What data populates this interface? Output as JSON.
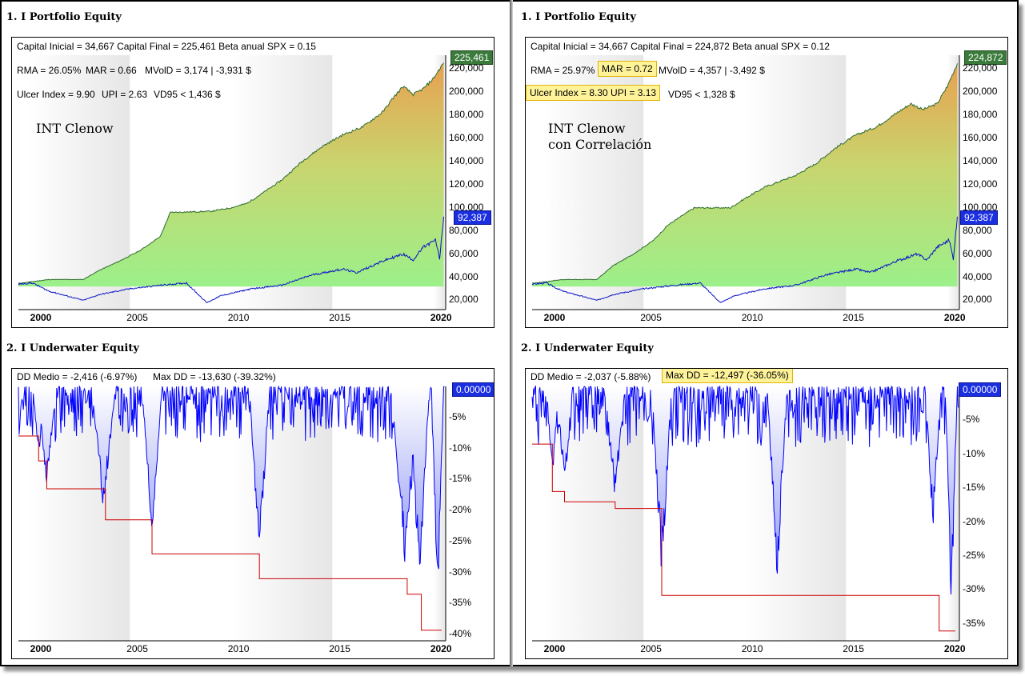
{
  "left": {
    "equity_title": "1. I Portfolio Equity",
    "underwater_title": "2. I Underwater Equity",
    "stats_line1": "Capital Inicial = 34,667  Capital Final = 225,461  Beta anual SPX = 0.15",
    "stats_rma": "RMA = 26.05%",
    "stats_mar": "MAR = 0.66",
    "stats_mvold": "MVolD = 3,174 | -3,931 $",
    "stats_ulcer": "Ulcer Index = 9.90",
    "stats_upi": "UPI = 2.63",
    "stats_vd95": "VD95 < 1,436 $",
    "strategy_label": "INT Clenow",
    "equity_flag": "225,461",
    "benchmark_flag": "92,387",
    "dd_medio": "DD Medio = -2,416 (-6.97%)",
    "max_dd": "Max DD = -13,630 (-39.32%)",
    "underwater_flag": "0.00000"
  },
  "right": {
    "equity_title": "1. I Portfolio Equity",
    "underwater_title": "2. I Underwater Equity",
    "stats_line1": "Capital Inicial = 34,667  Capital Final = 224,872  Beta anual SPX = 0.12",
    "stats_rma": "RMA = 25.97%",
    "stats_mar": "MAR = 0.72",
    "stats_mvold": "MVolD = 4,357 | -3,492 $",
    "stats_ulcer_upi": "Ulcer Index = 8.30   UPI = 3.13",
    "stats_vd95": "VD95 < 1,328 $",
    "strategy_label": "INT Clenow\ncon Correlación",
    "equity_flag": "224,872",
    "benchmark_flag": "92,387",
    "dd_medio": "DD Medio = -2,037 (-5.88%)",
    "max_dd": "Max DD = -12,497 (-36.05%)",
    "underwater_flag": "0.00000"
  },
  "colors": {
    "equity_line": "#2e6b2e",
    "equity_fill_top": "#e8a050",
    "equity_fill_mid": "#c9d46e",
    "equity_fill_bottom": "#9cf08a",
    "benchmark_line": "#0a14c8",
    "underwater_line": "#0000ff",
    "maxdd_line": "#cc0000",
    "highlight": "#fff39a"
  },
  "chart_data": [
    {
      "type": "area",
      "title": "1. I Portfolio Equity",
      "subtitle": "INT Clenow",
      "x_ticks": [
        "2000",
        "2005",
        "2010",
        "2015",
        "2020"
      ],
      "y_ticks": [
        "20,000",
        "40,000",
        "60,000",
        "80,000",
        "100,000",
        "120,000",
        "140,000",
        "160,000",
        "180,000",
        "200,000",
        "220,000"
      ],
      "ylim": [
        12000,
        232000
      ],
      "series": [
        {
          "name": "INT Clenow",
          "x": [
            1999.5,
            2001.0,
            2002.7,
            2003.5,
            2004.5,
            2005.5,
            2006.5,
            2007.0,
            2009.0,
            2010.0,
            2010.8,
            2011.5,
            2012.5,
            2013.5,
            2014.5,
            2015.5,
            2016.5,
            2017.5,
            2018.0,
            2018.5,
            2019.0,
            2019.5,
            2020.0,
            2020.5
          ],
          "values": [
            34667,
            38000,
            38000,
            46000,
            54000,
            63000,
            75000,
            96000,
            97000,
            100000,
            104000,
            112000,
            124000,
            140000,
            153000,
            163000,
            170000,
            183000,
            195000,
            205000,
            198000,
            203000,
            212000,
            225461
          ]
        },
        {
          "name": "SPX",
          "x": [
            1999.5,
            2000.2,
            2001.0,
            2002.7,
            2003.5,
            2005.0,
            2006.5,
            2007.8,
            2008.8,
            2009.5,
            2011.0,
            2012.5,
            2014.0,
            2015.5,
            2016.2,
            2017.5,
            2018.5,
            2019.0,
            2019.5,
            2020.1,
            2020.3,
            2020.5
          ],
          "values": [
            34000,
            35000,
            28000,
            20000,
            25000,
            30000,
            33000,
            35000,
            18000,
            24000,
            30000,
            33000,
            42000,
            47000,
            44000,
            54000,
            60000,
            55000,
            66000,
            72000,
            56000,
            92387
          ]
        }
      ]
    },
    {
      "type": "area",
      "title": "2. I Underwater Equity",
      "x_ticks": [
        "2000",
        "2005",
        "2010",
        "2015",
        "2020"
      ],
      "y_ticks": [
        "0.00000",
        "-5%",
        "-10%",
        "-15%",
        "-20%",
        "-25%",
        "-30%",
        "-35%",
        "-40%"
      ],
      "ylim": [
        -41,
        0
      ],
      "series": [
        {
          "name": "Max DD",
          "x": [
            1999.5,
            2000.5,
            2000.9,
            2003.8,
            2006.1,
            2011.4,
            2018.7,
            2019.4,
            2020.4
          ],
          "values": [
            -8,
            -12,
            -16.5,
            -21.5,
            -27,
            -31,
            -33.5,
            -39.3,
            -39.3
          ]
        }
      ]
    },
    {
      "type": "area",
      "title": "1. I Portfolio Equity",
      "subtitle": "INT Clenow con Correlación",
      "x_ticks": [
        "2000",
        "2005",
        "2010",
        "2015",
        "2020"
      ],
      "y_ticks": [
        "20,000",
        "40,000",
        "60,000",
        "80,000",
        "100,000",
        "120,000",
        "140,000",
        "160,000",
        "180,000",
        "200,000",
        "220,000"
      ],
      "ylim": [
        12000,
        232000
      ],
      "series": [
        {
          "name": "INT Clenow con Correlación",
          "x": [
            1999.5,
            2001.0,
            2002.7,
            2003.5,
            2004.5,
            2005.5,
            2006.2,
            2007.5,
            2009.3,
            2010.0,
            2011.0,
            2012.5,
            2013.5,
            2014.5,
            2015.5,
            2016.5,
            2017.5,
            2018.2,
            2018.8,
            2019.5,
            2020.0,
            2020.5
          ],
          "values": [
            34667,
            38000,
            38000,
            50000,
            60000,
            72000,
            85000,
            100000,
            100000,
            108000,
            118000,
            128000,
            138000,
            152000,
            163000,
            170000,
            182000,
            190000,
            185000,
            190000,
            205000,
            224872
          ]
        },
        {
          "name": "SPX",
          "x": [
            1999.5,
            2000.2,
            2001.0,
            2002.7,
            2003.5,
            2005.0,
            2006.5,
            2007.8,
            2008.8,
            2009.5,
            2011.0,
            2012.5,
            2014.0,
            2015.5,
            2016.2,
            2017.5,
            2018.5,
            2019.0,
            2019.5,
            2020.1,
            2020.3,
            2020.5
          ],
          "values": [
            34000,
            35000,
            28000,
            20000,
            25000,
            30000,
            33000,
            35000,
            18000,
            24000,
            30000,
            33000,
            42000,
            47000,
            44000,
            54000,
            60000,
            55000,
            66000,
            72000,
            56000,
            92387
          ]
        }
      ]
    },
    {
      "type": "area",
      "title": "2. I Underwater Equity",
      "x_ticks": [
        "2000",
        "2005",
        "2010",
        "2015",
        "2020"
      ],
      "y_ticks": [
        "0.00000",
        "-5%",
        "-10%",
        "-15%",
        "-20%",
        "-25%",
        "-30%",
        "-35%"
      ],
      "ylim": [
        -37.5,
        0
      ],
      "series": [
        {
          "name": "Max DD",
          "x": [
            1999.5,
            2000.5,
            2001.1,
            2003.6,
            2005.9,
            2019.6,
            2020.4
          ],
          "values": [
            -8.5,
            -15.5,
            -17,
            -18,
            -30.8,
            -36.05,
            -36.05
          ]
        }
      ]
    }
  ]
}
